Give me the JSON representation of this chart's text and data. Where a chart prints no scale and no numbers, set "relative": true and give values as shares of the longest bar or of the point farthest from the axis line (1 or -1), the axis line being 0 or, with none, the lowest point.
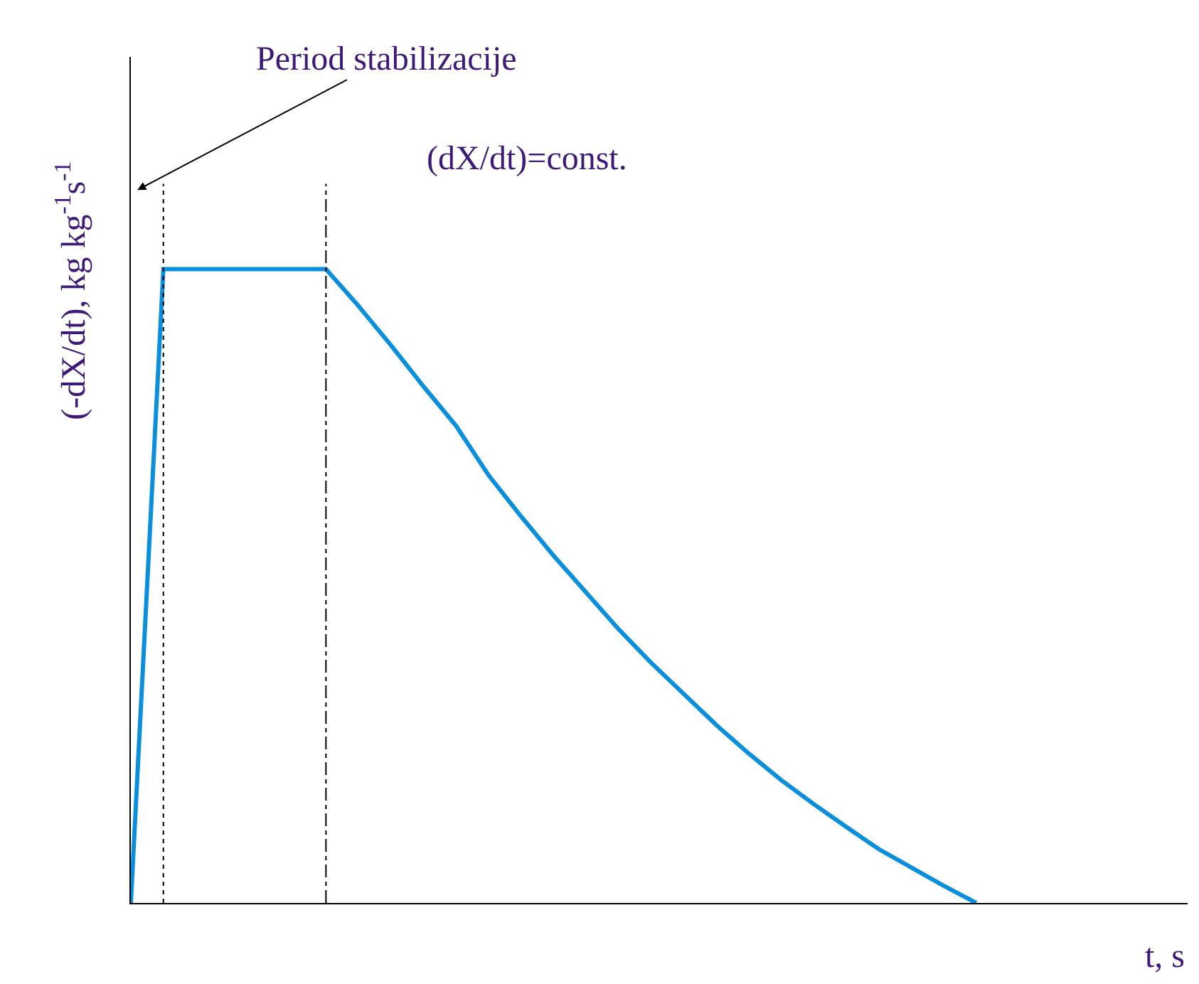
{
  "chart_data": {
    "type": "line",
    "relative": true,
    "xlabel": "t, s",
    "ylabel": "(-dX/dt), kg kg$^{-1}$s$^{-1}$",
    "annotations": [
      "Period stabilizacije",
      "(dX/dt)=const."
    ],
    "categories": [
      null,
      null,
      null,
      null,
      null,
      null,
      null,
      null,
      null,
      null,
      null,
      null,
      null,
      null,
      null,
      null,
      null,
      null,
      null,
      null,
      null,
      null,
      null,
      null,
      null,
      null,
      null
    ],
    "series": [
      {
        "color": "#0a8fdc",
        "values": [
          0,
          1,
          1,
          1,
          1,
          1,
          1,
          0.942,
          0.88,
          0.815,
          0.753,
          0.675,
          0.61,
          0.548,
          0.49,
          0.432,
          0.379,
          0.33,
          0.281,
          0.236,
          0.194,
          0.156,
          0.12,
          0.085,
          0.056,
          0.027,
          0
        ]
      }
    ],
    "marker": "none",
    "line_style": "solid"
  }
}
